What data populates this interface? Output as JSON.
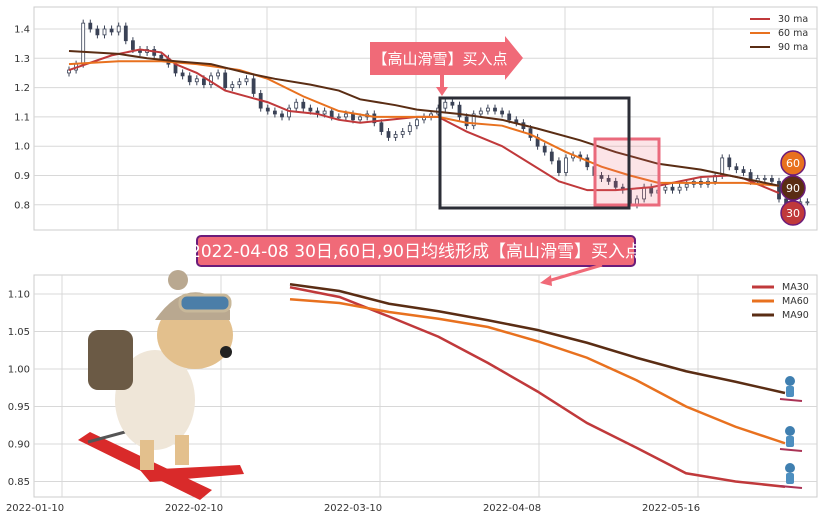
{
  "colors": {
    "ma30": "#c0393b",
    "ma60": "#e8711f",
    "ma90": "#5a2d14",
    "candle": "#3a4256",
    "annotation": "#f06a78",
    "annotation_border": "#6b1c7a",
    "box": "#2b2d36"
  },
  "annotations": {
    "arrow_label": "【高山滑雪】买入点",
    "title_box": "2022-04-08 30日,60日,90日均线形成【高山滑雪】买入点",
    "badges": [
      "60",
      "90",
      "30"
    ]
  },
  "chart_data": [
    {
      "type": "candlestick",
      "ylim": [
        0.71,
        1.475
      ],
      "y_ticks": [
        "1.4",
        "1.3",
        "1.2",
        "1.1",
        "1.0",
        "0.9",
        "0.8"
      ],
      "y_tick_values": [
        1.4,
        1.3,
        1.2,
        1.1,
        1.0,
        0.9,
        0.8
      ],
      "grid": true,
      "legend": "top-right",
      "close": [
        1.26,
        1.28,
        1.42,
        1.4,
        1.38,
        1.4,
        1.39,
        1.41,
        1.36,
        1.33,
        1.32,
        1.33,
        1.31,
        1.3,
        1.28,
        1.25,
        1.24,
        1.22,
        1.23,
        1.21,
        1.24,
        1.25,
        1.2,
        1.21,
        1.22,
        1.23,
        1.18,
        1.13,
        1.12,
        1.11,
        1.1,
        1.13,
        1.15,
        1.13,
        1.12,
        1.11,
        1.12,
        1.1,
        1.1,
        1.11,
        1.09,
        1.1,
        1.11,
        1.08,
        1.05,
        1.03,
        1.04,
        1.05,
        1.07,
        1.09,
        1.1,
        1.11,
        1.13,
        1.15,
        1.14,
        1.1,
        1.07,
        1.11,
        1.12,
        1.13,
        1.12,
        1.11,
        1.09,
        1.08,
        1.06,
        1.03,
        1.0,
        0.98,
        0.95,
        0.91,
        0.96,
        0.97,
        0.96,
        0.93,
        0.9,
        0.89,
        0.88,
        0.86,
        0.85,
        0.8,
        0.82,
        0.86,
        0.84,
        0.85,
        0.86,
        0.85,
        0.86,
        0.87,
        0.88,
        0.87,
        0.88,
        0.9,
        0.96,
        0.93,
        0.92,
        0.91,
        0.88,
        0.89,
        0.89,
        0.88,
        0.82,
        0.78,
        0.8,
        0.81,
        0.81
      ],
      "series": [
        {
          "name": "30 ma",
          "x": [
            0,
            6,
            10,
            13,
            15,
            18,
            22,
            28,
            31,
            35,
            38,
            41,
            45,
            49,
            52,
            56,
            61,
            65,
            69,
            73,
            77,
            82,
            86,
            89,
            93,
            95,
            100
          ],
          "y": [
            1.26,
            1.31,
            1.33,
            1.32,
            1.28,
            1.25,
            1.19,
            1.15,
            1.12,
            1.11,
            1.09,
            1.08,
            1.09,
            1.1,
            1.1,
            1.05,
            1.0,
            0.94,
            0.88,
            0.85,
            0.85,
            0.86,
            0.88,
            0.895,
            0.9,
            0.89,
            0.84
          ]
        },
        {
          "name": "60 ma",
          "x": [
            0,
            7,
            13,
            18,
            24,
            28,
            33,
            38,
            43,
            48,
            52,
            56,
            61,
            65,
            70,
            75,
            79,
            83,
            89,
            95,
            100
          ],
          "y": [
            1.28,
            1.29,
            1.29,
            1.28,
            1.26,
            1.23,
            1.17,
            1.12,
            1.1,
            1.1,
            1.1,
            1.08,
            1.07,
            1.04,
            0.98,
            0.93,
            0.9,
            0.875,
            0.875,
            0.875,
            0.865
          ]
        },
        {
          "name": "90 ma",
          "x": [
            0,
            7,
            11,
            15,
            20,
            25,
            29,
            34,
            38,
            41,
            46,
            49,
            55,
            61,
            66,
            72,
            77,
            83,
            89,
            94,
            100
          ],
          "y": [
            1.325,
            1.315,
            1.3,
            1.29,
            1.28,
            1.25,
            1.23,
            1.21,
            1.19,
            1.16,
            1.14,
            1.125,
            1.11,
            1.09,
            1.06,
            1.02,
            0.98,
            0.94,
            0.92,
            0.895,
            0.865
          ]
        }
      ]
    },
    {
      "type": "line",
      "ylim": [
        0.828,
        1.126
      ],
      "y_ticks": [
        "1.10",
        "1.05",
        "1.00",
        "0.95",
        "0.90",
        "0.85"
      ],
      "y_tick_values": [
        1.1,
        1.05,
        1.0,
        0.95,
        0.9,
        0.85
      ],
      "x_ticks": [
        "2022-01-10",
        "2022-02-10",
        "2022-03-10",
        "2022-04-08",
        "2022-05-16"
      ],
      "grid": true,
      "legend": "top-right",
      "series": [
        {
          "name": "MA30",
          "values": [
            1.109,
            1.096,
            1.07,
            1.043,
            1.008,
            0.97,
            0.928,
            0.895,
            0.861,
            0.85,
            0.843
          ]
        },
        {
          "name": "MA60",
          "values": [
            1.093,
            1.088,
            1.076,
            1.067,
            1.056,
            1.037,
            1.015,
            0.985,
            0.95,
            0.923,
            0.901
          ]
        },
        {
          "name": "MA90",
          "values": [
            1.113,
            1.104,
            1.087,
            1.077,
            1.065,
            1.052,
            1.035,
            1.015,
            0.997,
            0.983,
            0.968
          ]
        }
      ]
    }
  ]
}
